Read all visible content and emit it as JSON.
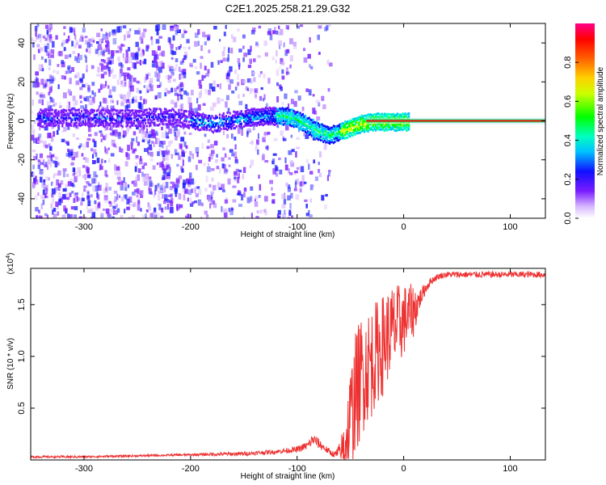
{
  "title": "C2E1.2025.258.21.29.G32",
  "chart_data": [
    {
      "type": "heatmap",
      "name": "spectrogram",
      "xlabel": "Height of straight line (km)",
      "ylabel": "Frequency (Hz)",
      "xlim": [
        -350,
        133
      ],
      "ylim": [
        -50,
        50
      ],
      "xticks": [
        -300,
        -200,
        -100,
        0,
        100
      ],
      "xtick_labels": [
        "-300",
        "-200",
        "-100",
        "0",
        "100"
      ],
      "yticks": [
        -40,
        -20,
        0,
        20,
        40
      ],
      "ytick_labels": [
        "-40",
        "-20",
        "0",
        "20",
        "40"
      ],
      "colorbar": {
        "label": "Normalized spectral amplitude",
        "range": [
          0,
          1
        ],
        "ticks": [
          0.0,
          0.2,
          0.4,
          0.6,
          0.8
        ],
        "tick_labels": [
          "0.0",
          "0.2",
          "0.4",
          "0.6",
          "0.8"
        ],
        "colors": [
          "#ffffff",
          "#b06cff",
          "#5a00ff",
          "#0000ff",
          "#00d8ff",
          "#00ff20",
          "#ffff00",
          "#ff6000",
          "#ff0000",
          "#ff0080"
        ]
      },
      "ridge": {
        "x": [
          -350,
          -300,
          -250,
          -220,
          -200,
          -180,
          -150,
          -130,
          -110,
          -100,
          -90,
          -80,
          -70,
          -60,
          -50,
          -40,
          -30,
          -20,
          -10,
          0,
          133
        ],
        "freq": [
          2,
          2,
          2,
          3,
          1,
          -1,
          2,
          3,
          3,
          1,
          -2,
          -5,
          -7,
          -5,
          -3,
          -1,
          0,
          0,
          0,
          0,
          0
        ]
      }
    },
    {
      "type": "line",
      "name": "snr",
      "xlabel": "Height of straight line (km)",
      "ylabel": "SNR (10 * v/v)",
      "ylabel_multiplier": "(x10",
      "ylabel_multiplier_exp": "4",
      "ylabel_multiplier_close": ")",
      "xlim": [
        -350,
        133
      ],
      "ylim": [
        0,
        1.85
      ],
      "xticks": [
        -300,
        -200,
        -100,
        0,
        100
      ],
      "xtick_labels": [
        "-300",
        "-200",
        "-100",
        "0",
        "100"
      ],
      "yticks": [
        0.5,
        1.0,
        1.5
      ],
      "ytick_labels": [
        "0.5",
        "1.0",
        "1.5"
      ],
      "color": "#ee3030",
      "series": [
        {
          "name": "SNR",
          "x": [
            -350,
            -300,
            -250,
            -200,
            -150,
            -120,
            -100,
            -90,
            -85,
            -80,
            -75,
            -70,
            -65,
            -60,
            -55,
            -50,
            -45,
            -40,
            -35,
            -30,
            -25,
            -20,
            -15,
            -10,
            -5,
            0,
            5,
            10,
            15,
            20,
            25,
            30,
            35,
            40,
            50,
            60,
            80,
            100,
            133
          ],
          "y": [
            0.03,
            0.03,
            0.04,
            0.05,
            0.06,
            0.08,
            0.1,
            0.14,
            0.2,
            0.16,
            0.12,
            0.08,
            0.05,
            0.07,
            0.15,
            0.4,
            0.65,
            0.8,
            0.9,
            0.95,
            1.05,
            1.1,
            1.2,
            1.25,
            1.3,
            1.35,
            1.4,
            1.45,
            1.55,
            1.65,
            1.72,
            1.76,
            1.78,
            1.79,
            1.79,
            1.79,
            1.79,
            1.79,
            1.79
          ],
          "noise": [
            0.01,
            0.01,
            0.01,
            0.01,
            0.02,
            0.02,
            0.03,
            0.04,
            0.06,
            0.05,
            0.04,
            0.03,
            0.03,
            0.1,
            0.3,
            0.5,
            0.6,
            0.6,
            0.55,
            0.55,
            0.5,
            0.5,
            0.45,
            0.45,
            0.4,
            0.35,
            0.3,
            0.25,
            0.1,
            0.06,
            0.04,
            0.03,
            0.03,
            0.03,
            0.03,
            0.03,
            0.03,
            0.03,
            0.03
          ]
        }
      ]
    }
  ]
}
